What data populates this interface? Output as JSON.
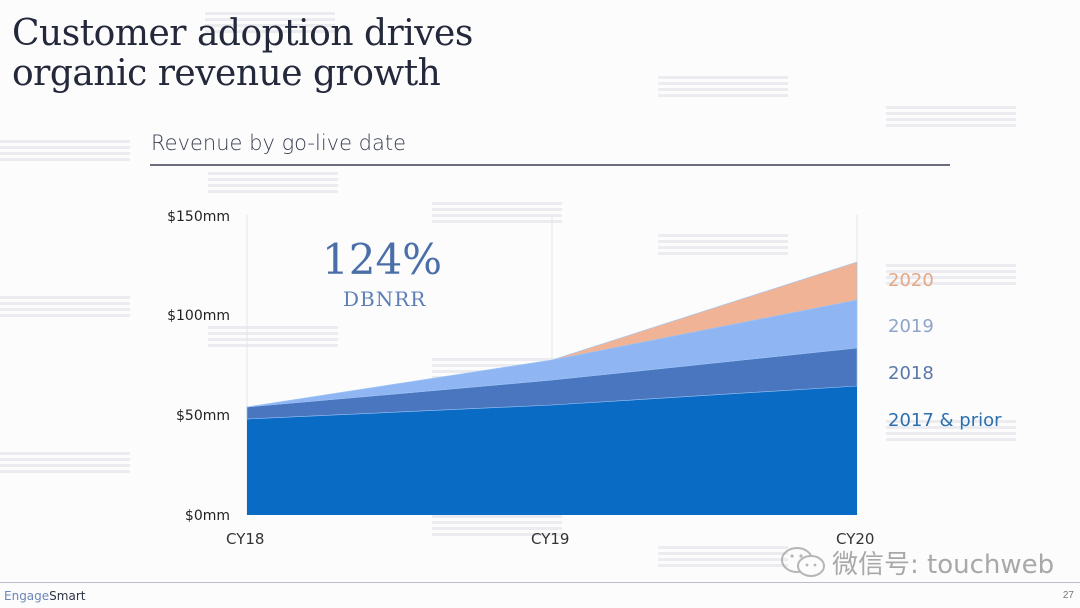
{
  "slide": {
    "title_line1": "Customer adoption drives",
    "title_line2": "organic revenue growth",
    "subtitle": "Revenue by go-live date",
    "highlight_value": "124%",
    "highlight_label": "DBNRR",
    "brand_part1": "Engage",
    "brand_part2": "Smart",
    "page_number": "27",
    "watermark_text": "微信号: touchweb",
    "watermark_icon": "wechat-icon"
  },
  "chart_data": {
    "type": "area",
    "stacked": true,
    "title": "Revenue by go-live date",
    "xlabel": "",
    "ylabel": "",
    "x": [
      "CY18",
      "CY19",
      "CY20"
    ],
    "y_ticks": [
      "$0mm",
      "$50mm",
      "$100mm",
      "$150mm"
    ],
    "y_tick_values": [
      0,
      50,
      100,
      150
    ],
    "ylim": [
      0,
      150
    ],
    "unit": "$mm",
    "grid": false,
    "legend_position": "right",
    "series": [
      {
        "name": "2017 & prior",
        "color": "#0a6bc4",
        "label_color": "#2b6fb0",
        "values": [
          48,
          55,
          64.5
        ]
      },
      {
        "name": "2018",
        "color": "#4a76c0",
        "label_color": "#5b79a8",
        "values": [
          6,
          12.5,
          19
        ]
      },
      {
        "name": "2019",
        "color": "#8fb6f2",
        "label_color": "#8ea5c9",
        "values": [
          0,
          10,
          24
        ]
      },
      {
        "name": "2020",
        "color": "#f0b396",
        "label_color": "#e5a785",
        "values": [
          0,
          0,
          19
        ]
      }
    ],
    "annotations": [
      "124% DBNRR"
    ]
  }
}
